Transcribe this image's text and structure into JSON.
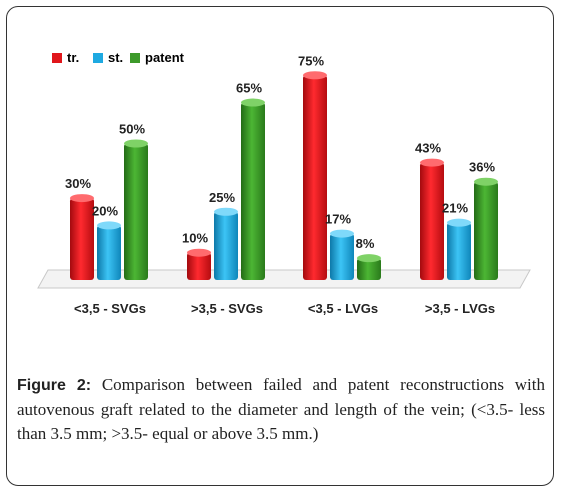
{
  "chart_data": {
    "type": "bar",
    "categories": [
      "<3,5 - SVGs",
      ">3,5 - SVGs",
      "<3,5 - LVGs",
      ">3,5 - LVGs"
    ],
    "series": [
      {
        "name": "tr.",
        "color": "#e0161b",
        "values": [
          30,
          10,
          75,
          43
        ],
        "labels": [
          "30%",
          "10%",
          "75%",
          "43%"
        ]
      },
      {
        "name": "st.",
        "color": "#1ea9e1",
        "values": [
          20,
          25,
          17,
          21
        ],
        "labels": [
          "20%",
          "25%",
          "17%",
          "21%"
        ]
      },
      {
        "name": "patent",
        "color": "#3d9a2a",
        "values": [
          50,
          65,
          8,
          36
        ],
        "labels": [
          "50%",
          "65%",
          "8%",
          "36%"
        ]
      }
    ],
    "ylim": [
      0,
      80
    ],
    "legend_position": "top-left"
  },
  "caption": {
    "label": "Figure 2:",
    "text": " Comparison between failed and patent reconstructions with autovenous graft related to the diameter and length of the vein; (<3.5- less than 3.5 mm; >3.5- equal or above 3.5 mm.)"
  }
}
